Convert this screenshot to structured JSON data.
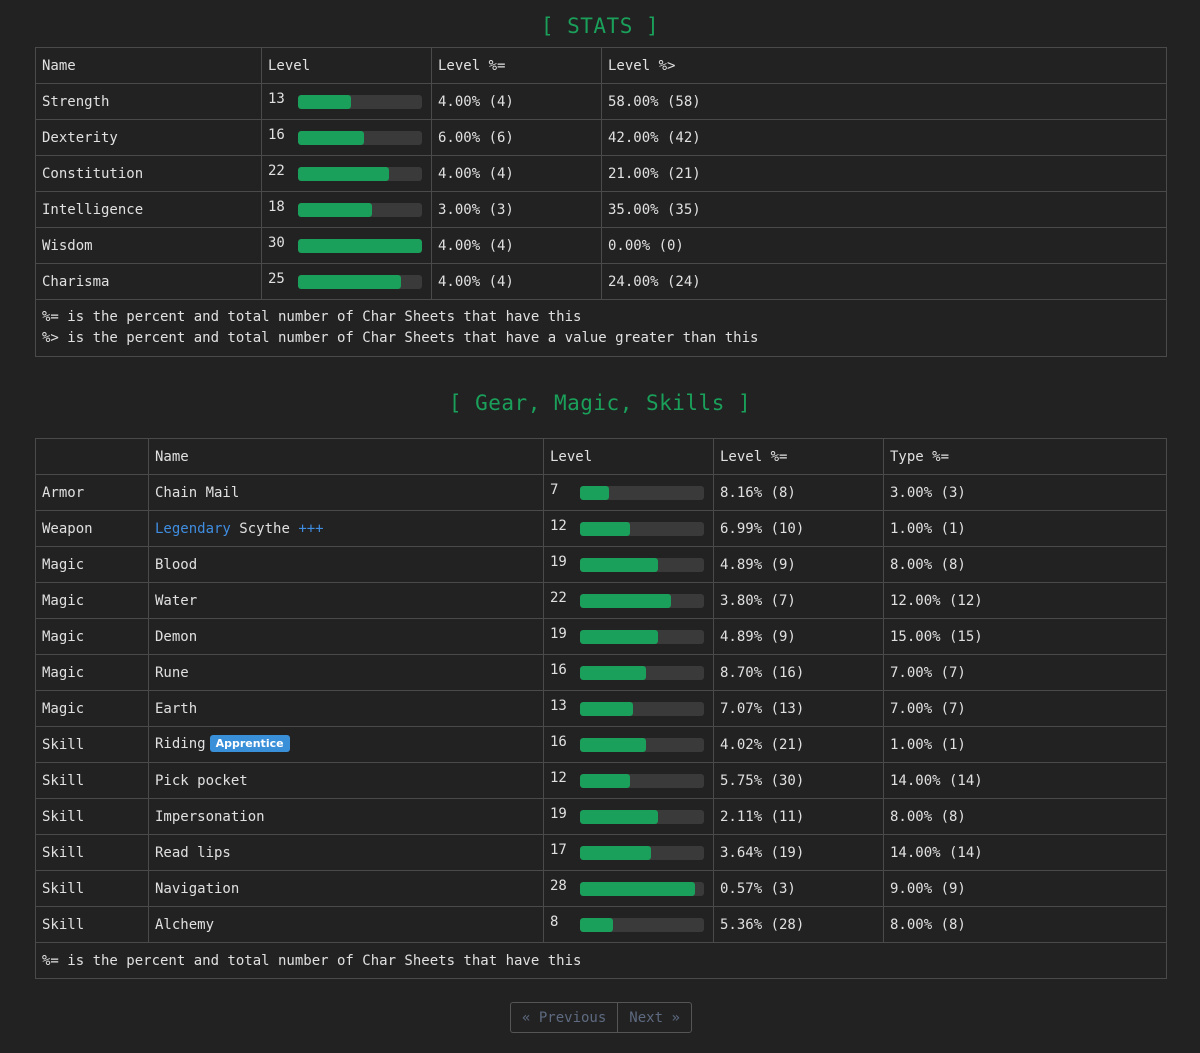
{
  "stats": {
    "heading": "[ STATS ]",
    "headers": [
      "Name",
      "Level",
      "Level %=",
      "Level %>"
    ],
    "rows": [
      {
        "name": "Strength",
        "level": "13",
        "fill": 0.43,
        "eq": "4.00% (4)",
        "gt": "58.00% (58)"
      },
      {
        "name": "Dexterity",
        "level": "16",
        "fill": 0.53,
        "eq": "6.00% (6)",
        "gt": "42.00% (42)"
      },
      {
        "name": "Constitution",
        "level": "22",
        "fill": 0.73,
        "eq": "4.00% (4)",
        "gt": "21.00% (21)"
      },
      {
        "name": "Intelligence",
        "level": "18",
        "fill": 0.6,
        "eq": "3.00% (3)",
        "gt": "35.00% (35)"
      },
      {
        "name": "Wisdom",
        "level": "30",
        "fill": 1.0,
        "eq": "4.00% (4)",
        "gt": "0.00% (0)"
      },
      {
        "name": "Charisma",
        "level": "25",
        "fill": 0.83,
        "eq": "4.00% (4)",
        "gt": "24.00% (24)"
      }
    ],
    "notes": [
      "%= is the percent and total number of Char Sheets that have this",
      "%> is the percent and total number of Char Sheets that have a value greater than this"
    ]
  },
  "gear": {
    "heading": "[ Gear, Magic, Skills ]",
    "headers": [
      "",
      "Name",
      "Level",
      "Level %=",
      "Type %="
    ],
    "rows": [
      {
        "type": "Armor",
        "name": "Chain Mail",
        "level": "7",
        "fill": 0.23,
        "eq": "8.16% (8)",
        "type_eq": "3.00% (3)"
      },
      {
        "type": "Weapon",
        "prefix": "Legendary",
        "name": "Scythe",
        "suffix": "+++",
        "level": "12",
        "fill": 0.4,
        "eq": "6.99% (10)",
        "type_eq": "1.00% (1)"
      },
      {
        "type": "Magic",
        "name": "Blood",
        "level": "19",
        "fill": 0.63,
        "eq": "4.89% (9)",
        "type_eq": "8.00% (8)"
      },
      {
        "type": "Magic",
        "name": "Water",
        "level": "22",
        "fill": 0.73,
        "eq": "3.80% (7)",
        "type_eq": "12.00% (12)"
      },
      {
        "type": "Magic",
        "name": "Demon",
        "level": "19",
        "fill": 0.63,
        "eq": "4.89% (9)",
        "type_eq": "15.00% (15)"
      },
      {
        "type": "Magic",
        "name": "Rune",
        "level": "16",
        "fill": 0.53,
        "eq": "8.70% (16)",
        "type_eq": "7.00% (7)"
      },
      {
        "type": "Magic",
        "name": "Earth",
        "level": "13",
        "fill": 0.43,
        "eq": "7.07% (13)",
        "type_eq": "7.00% (7)"
      },
      {
        "type": "Skill",
        "name": "Riding",
        "badge": "Apprentice",
        "level": "16",
        "fill": 0.53,
        "eq": "4.02% (21)",
        "type_eq": "1.00% (1)"
      },
      {
        "type": "Skill",
        "name": "Pick pocket",
        "level": "12",
        "fill": 0.4,
        "eq": "5.75% (30)",
        "type_eq": "14.00% (14)"
      },
      {
        "type": "Skill",
        "name": "Impersonation",
        "level": "19",
        "fill": 0.63,
        "eq": "2.11% (11)",
        "type_eq": "8.00% (8)"
      },
      {
        "type": "Skill",
        "name": "Read lips",
        "level": "17",
        "fill": 0.57,
        "eq": "3.64% (19)",
        "type_eq": "14.00% (14)"
      },
      {
        "type": "Skill",
        "name": "Navigation",
        "level": "28",
        "fill": 0.93,
        "eq": "0.57% (3)",
        "type_eq": "9.00% (9)"
      },
      {
        "type": "Skill",
        "name": "Alchemy",
        "level": "8",
        "fill": 0.27,
        "eq": "5.36% (28)",
        "type_eq": "8.00% (8)"
      }
    ],
    "note": "%= is the percent and total number of Char Sheets that have this"
  },
  "pager": {
    "previous": "« Previous",
    "next": "Next »"
  },
  "colors": {
    "accent": "#1aa05a",
    "link": "#3f8de0",
    "badge": "#3a8fd9"
  }
}
